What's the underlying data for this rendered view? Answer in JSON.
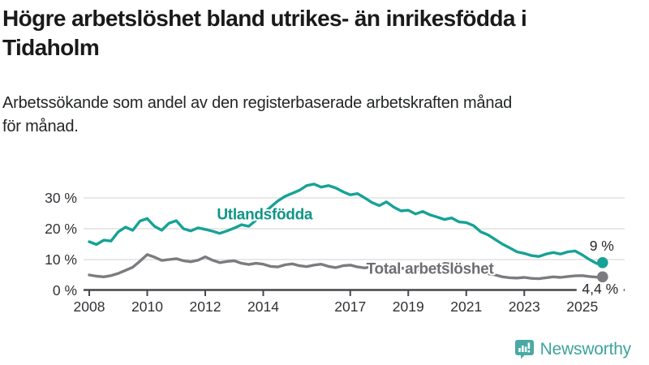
{
  "chart_data": {
    "type": "line",
    "title": "Högre arbetslöshet bland utrikes- än inrikesfödda i\nTidaholm",
    "subtitle": "Arbetssökande som andel av den registerbaserade arbetskraften månad\nför månad.",
    "unit": "%",
    "grid": "horizontal",
    "legend": "inline-labels",
    "xlim": [
      2007.85,
      2026.4
    ],
    "ylim": [
      0,
      36
    ],
    "x_ticks": {
      "years": [
        2008,
        2010,
        2012,
        2014,
        2017,
        2019,
        2021,
        2023,
        2025
      ],
      "labels": [
        "2008",
        "2010",
        "2012",
        "2014",
        "2017",
        "2019",
        "2021",
        "2023",
        "2025"
      ]
    },
    "y_ticks": {
      "values": [
        0,
        10,
        20,
        30
      ],
      "labels": [
        "0 %",
        "10 %",
        "20 %",
        "30 %"
      ]
    },
    "x": [
      2008,
      2008.25,
      2008.5,
      2008.75,
      2009,
      2009.25,
      2009.5,
      2009.75,
      2010,
      2010.25,
      2010.5,
      2010.75,
      2011,
      2011.25,
      2011.5,
      2011.75,
      2012,
      2012.25,
      2012.5,
      2012.75,
      2013,
      2013.25,
      2013.5,
      2013.75,
      2014,
      2014.25,
      2014.5,
      2014.75,
      2015,
      2015.25,
      2015.5,
      2015.75,
      2016,
      2016.25,
      2016.5,
      2016.75,
      2017,
      2017.25,
      2017.5,
      2017.75,
      2018,
      2018.25,
      2018.5,
      2018.75,
      2019,
      2019.25,
      2019.5,
      2019.75,
      2020,
      2020.25,
      2020.5,
      2020.75,
      2021,
      2021.25,
      2021.5,
      2021.75,
      2022,
      2022.25,
      2022.5,
      2022.75,
      2023,
      2023.25,
      2023.5,
      2023.75,
      2024,
      2024.25,
      2024.5,
      2024.75,
      2025,
      2025.25,
      2025.5,
      2025.7
    ],
    "series": [
      {
        "name": "Utlandsfödda",
        "color": "#16a296",
        "label_color": "#119588",
        "end_label": "9 %",
        "end_label_side": "above",
        "label_pos": {
          "x": 2014.05,
          "y": 24.7
        },
        "values": [
          15.8,
          14.9,
          16.3,
          16,
          19,
          20.5,
          19.5,
          22.5,
          23.3,
          20.8,
          19.5,
          21.8,
          22.6,
          20,
          19.3,
          20.3,
          19.8,
          19.2,
          18.5,
          19.3,
          20.2,
          21.3,
          20.8,
          22.8,
          25,
          27,
          29,
          30.5,
          31.5,
          32.5,
          34,
          34.5,
          33.5,
          34,
          33.2,
          32,
          31,
          31.4,
          30,
          28.5,
          27.5,
          28.7,
          27,
          25.8,
          26,
          24.8,
          25.6,
          24.5,
          23.8,
          23,
          23.5,
          22.2,
          22,
          21,
          19,
          18,
          16.5,
          15,
          13.8,
          12.5,
          12,
          11.3,
          11,
          11.8,
          12.3,
          11.8,
          12.5,
          12.8,
          11.5,
          10,
          8.7,
          9
        ]
      },
      {
        "name": "Total arbetslöshet",
        "color": "#7b7b80",
        "label_color": "#6e6e73",
        "end_label": "4,4 %",
        "end_label_side": "below",
        "label_pos": {
          "x": 2019.75,
          "y": 7.1
        },
        "values": [
          5,
          4.6,
          4.4,
          4.8,
          5.5,
          6.5,
          7.5,
          9.5,
          11.6,
          10.8,
          9.7,
          10,
          10.3,
          9.6,
          9.3,
          9.8,
          10.9,
          9.8,
          9,
          9.4,
          9.6,
          8.8,
          8.4,
          8.8,
          8.5,
          7.8,
          7.6,
          8.3,
          8.6,
          8,
          7.7,
          8.2,
          8.5,
          7.8,
          7.4,
          8,
          8.2,
          7.6,
          7.3,
          7.7,
          7.5,
          7,
          6.8,
          7.2,
          7,
          6.6,
          6.8,
          7,
          7.2,
          8.8,
          8.5,
          8,
          7.5,
          6.8,
          6,
          5.4,
          5,
          4.4,
          4.1,
          4,
          4.2,
          3.9,
          3.8,
          4.1,
          4.4,
          4.2,
          4.5,
          4.7,
          4.8,
          4.5,
          4.3,
          4.4
        ]
      }
    ],
    "style": {
      "grid_color": "#dbdbdb",
      "axis_color": "#45474b",
      "tick_label_color": "#303236",
      "end_label_color": "#26282a",
      "background": "#ffffff"
    }
  },
  "footer": {
    "brand": "Newsworthy",
    "brand_color": "#3da39e",
    "icon_color": "#4aa9a4"
  }
}
